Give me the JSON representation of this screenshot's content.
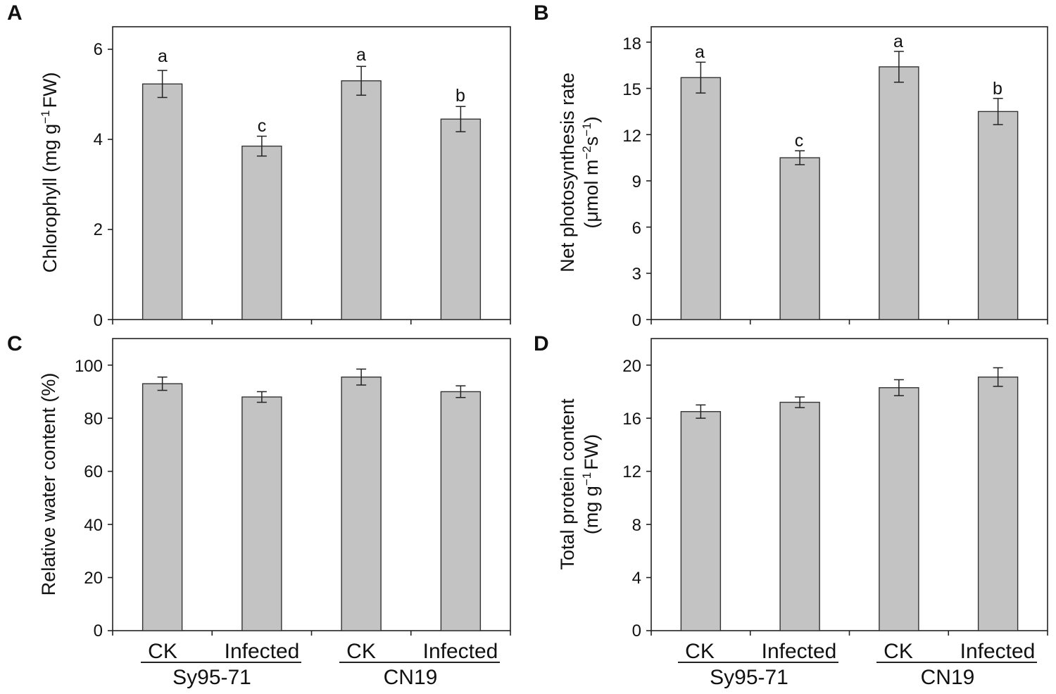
{
  "chart_data": [
    {
      "panel": "A",
      "type": "bar",
      "categories": [
        "CK",
        "Infected",
        "CK",
        "Infected"
      ],
      "groups": [
        "Sy95-71",
        "CN19"
      ],
      "values": [
        5.23,
        3.85,
        5.3,
        4.45
      ],
      "errors": [
        0.3,
        0.22,
        0.32,
        0.28
      ],
      "significance": [
        "a",
        "c",
        "a",
        "b"
      ],
      "ylabel_main": "Chlorophyll (mg g",
      "ylabel_sup": "−1",
      "ylabel_tail": "FW)",
      "ylim": [
        0,
        6.5
      ],
      "yticks": [
        0,
        2,
        4,
        6
      ],
      "ytick_labels": [
        "0",
        "2",
        "4",
        "6"
      ]
    },
    {
      "panel": "B",
      "type": "bar",
      "categories": [
        "CK",
        "Infected",
        "CK",
        "Infected"
      ],
      "groups": [
        "Sy95-71",
        "CN19"
      ],
      "values": [
        15.7,
        10.5,
        16.4,
        13.5
      ],
      "errors": [
        1.0,
        0.45,
        1.0,
        0.85
      ],
      "significance": [
        "a",
        "c",
        "a",
        "b"
      ],
      "ylabel_line1": "Net photosynthesis rate",
      "ylabel_line2_a": "(μmol m",
      "ylabel_line2_sup1": "−2",
      "ylabel_line2_b": "s",
      "ylabel_line2_sup2": "−1",
      "ylabel_line2_c": ")",
      "ylim": [
        0,
        19
      ],
      "yticks": [
        0,
        3,
        6,
        9,
        12,
        15,
        18
      ],
      "ytick_labels": [
        "0",
        "3",
        "6",
        "9",
        "12",
        "15",
        "18"
      ]
    },
    {
      "panel": "C",
      "type": "bar",
      "categories": [
        "CK",
        "Infected",
        "CK",
        "Infected"
      ],
      "groups": [
        "Sy95-71",
        "CN19"
      ],
      "values": [
        93,
        88,
        95.5,
        90
      ],
      "errors": [
        2.5,
        2.0,
        3.0,
        2.2
      ],
      "significance": [
        "",
        "",
        "",
        ""
      ],
      "ylabel": "Relative water content (%)",
      "ylim": [
        0,
        110
      ],
      "yticks": [
        0,
        20,
        40,
        60,
        80,
        100
      ],
      "ytick_labels": [
        "0",
        "20",
        "40",
        "60",
        "80",
        "100"
      ]
    },
    {
      "panel": "D",
      "type": "bar",
      "categories": [
        "CK",
        "Infected",
        "CK",
        "Infected"
      ],
      "groups": [
        "Sy95-71",
        "CN19"
      ],
      "values": [
        16.5,
        17.2,
        18.3,
        19.1
      ],
      "errors": [
        0.5,
        0.4,
        0.6,
        0.7
      ],
      "significance": [
        "",
        "",
        "",
        ""
      ],
      "ylabel_line1": "Total protein content",
      "ylabel_line2_a": "(mg g",
      "ylabel_line2_sup": "−1",
      "ylabel_line2_b": "FW)",
      "ylim": [
        0,
        22
      ],
      "yticks": [
        0,
        4,
        8,
        12,
        16,
        20
      ],
      "ytick_labels": [
        "0",
        "4",
        "8",
        "12",
        "16",
        "20"
      ]
    }
  ],
  "colors": {
    "bar_fill": "#c3c3c3",
    "bar_stroke": "#333333",
    "axis": "#222222",
    "text": "#111111"
  }
}
